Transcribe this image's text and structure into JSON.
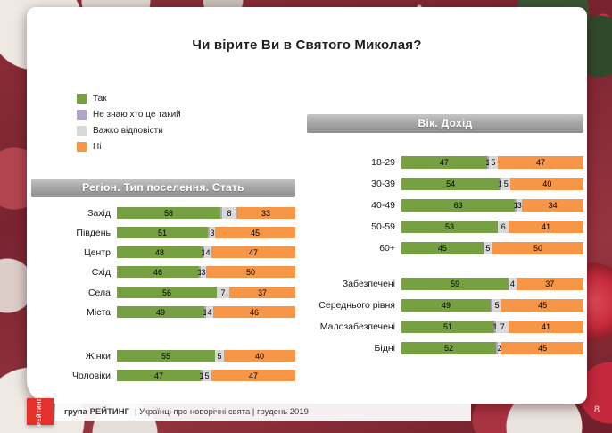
{
  "title": "Чи вірите Ви в Святого Миколая?",
  "legend": [
    {
      "key": "yes",
      "label": "Так",
      "color": "#76A041"
    },
    {
      "key": "dont-know-who",
      "label": "Не знаю хто це такий",
      "color": "#B3A2C7"
    },
    {
      "key": "hard-to-answer",
      "label": "Важко відповісти",
      "color": "#D9D9D9"
    },
    {
      "key": "no",
      "label": "Ні",
      "color": "#F79646"
    }
  ],
  "chart_data": [
    {
      "type": "bar",
      "stacked": true,
      "orientation": "horizontal",
      "unit": "%",
      "xlim": [
        0,
        100
      ],
      "title": "Регіон. Тип поселення. Стать",
      "series": [
        "Так",
        "Не знаю хто це такий",
        "Важко відповісти",
        "Ні"
      ],
      "groups": [
        {
          "rows": [
            {
              "label": "Захід",
              "values": [
                58,
                1,
                8,
                33
              ],
              "labels": [
                "58",
                "",
                "8",
                "33"
              ]
            },
            {
              "label": "Південь",
              "values": [
                51,
                1,
                3,
                45
              ],
              "labels": [
                "51",
                "",
                "3",
                "45"
              ]
            },
            {
              "label": "Центр",
              "values": [
                48,
                1,
                4,
                47
              ],
              "labels": [
                "48",
                "1",
                "4",
                "47"
              ]
            },
            {
              "label": "Схід",
              "values": [
                46,
                1,
                3,
                50
              ],
              "labels": [
                "46",
                "1",
                "3",
                "50"
              ]
            }
          ]
        },
        {
          "rows": [
            {
              "label": "Села",
              "values": [
                56,
                0,
                7,
                37
              ],
              "labels": [
                "56",
                "",
                "7",
                "37"
              ]
            },
            {
              "label": "Міста",
              "values": [
                49,
                1,
                4,
                46
              ],
              "labels": [
                "49",
                "1",
                "4",
                "46"
              ]
            }
          ]
        },
        {
          "rows": [
            {
              "label": "Жінки",
              "values": [
                55,
                0,
                5,
                40
              ],
              "labels": [
                "55",
                "",
                "5",
                "40"
              ]
            },
            {
              "label": "Чоловіки",
              "values": [
                47,
                1,
                5,
                47
              ],
              "labels": [
                "47",
                "1",
                "5",
                "47"
              ]
            }
          ]
        }
      ]
    },
    {
      "type": "bar",
      "stacked": true,
      "orientation": "horizontal",
      "unit": "%",
      "xlim": [
        0,
        100
      ],
      "title": "Вік. Дохід",
      "series": [
        "Так",
        "Не знаю хто це такий",
        "Важко відповісти",
        "Ні"
      ],
      "groups": [
        {
          "rows": [
            {
              "label": "18-29",
              "values": [
                47,
                1,
                5,
                47
              ],
              "labels": [
                "47",
                "1",
                "5",
                "47"
              ]
            },
            {
              "label": "30-39",
              "values": [
                54,
                1,
                5,
                40
              ],
              "labels": [
                "54",
                "1",
                "5",
                "40"
              ]
            },
            {
              "label": "40-49",
              "values": [
                63,
                1,
                3,
                34
              ],
              "labels": [
                "63",
                "1",
                "3",
                "34"
              ]
            },
            {
              "label": "50-59",
              "values": [
                53,
                0,
                6,
                41
              ],
              "labels": [
                "53",
                "",
                "6",
                "41"
              ]
            },
            {
              "label": "60+",
              "values": [
                45,
                0,
                5,
                50
              ],
              "labels": [
                "45",
                "",
                "5",
                "50"
              ]
            }
          ]
        },
        {
          "rows": [
            {
              "label": "Забезпечені",
              "values": [
                59,
                0,
                4,
                37
              ],
              "labels": [
                "59",
                "",
                "4",
                "37"
              ]
            },
            {
              "label": "Середнього рівня",
              "values": [
                49,
                1,
                5,
                45
              ],
              "labels": [
                "49",
                "",
                "5",
                "45"
              ]
            },
            {
              "label": "Малозабезпечені",
              "values": [
                51,
                1,
                7,
                41
              ],
              "labels": [
                "51",
                "1",
                "7",
                "41"
              ]
            },
            {
              "label": "Бідні",
              "values": [
                52,
                1,
                2,
                45
              ],
              "labels": [
                "52",
                "",
                "2",
                "45"
              ]
            }
          ]
        }
      ]
    }
  ],
  "footer": {
    "logo": "РЕЙТИНГ",
    "brand": "група РЕЙТИНГ",
    "rest": "|  Українці про новорічні свята  |  грудень 2019",
    "page": "8"
  }
}
